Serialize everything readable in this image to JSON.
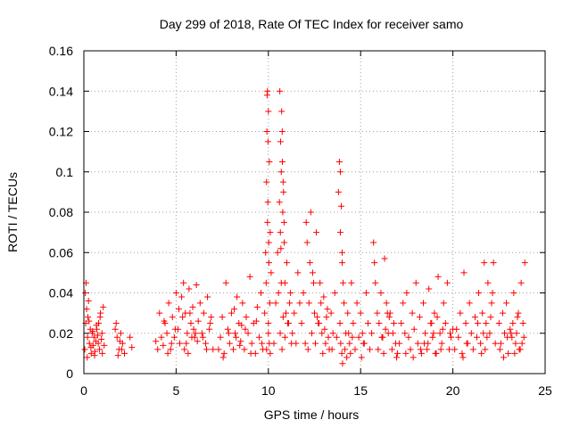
{
  "chart_data": {
    "type": "scatter",
    "title": "Day 299 of 2018, Rate Of TEC Index for receiver samo",
    "xlabel": "GPS time / hours",
    "ylabel": "ROTI / TECUs",
    "xlim": [
      0,
      25
    ],
    "ylim": [
      0,
      0.16
    ],
    "xticks": [
      0,
      5,
      10,
      15,
      20,
      25
    ],
    "yticks": [
      0,
      0.02,
      0.04,
      0.06,
      0.08,
      0.1,
      0.12,
      0.14,
      0.16
    ],
    "xtick_labels": [
      "0",
      "5",
      "10",
      "15",
      "20",
      "25"
    ],
    "ytick_labels": [
      "0",
      "0.02",
      "0.04",
      "0.06",
      "0.08",
      "0.1",
      "0.12",
      "0.14",
      "0.16"
    ],
    "grid": true,
    "marker": "+",
    "color": "#ff0000",
    "series": [
      {
        "name": "ROTI",
        "x": [
          0.05,
          0.1,
          0.12,
          0.15,
          0.2,
          0.22,
          0.25,
          0.3,
          0.35,
          0.4,
          0.45,
          0.5,
          0.55,
          0.6,
          0.65,
          0.7,
          0.75,
          0.8,
          0.85,
          0.9,
          0.95,
          1.0,
          1.05,
          1.1,
          0.08,
          0.18,
          0.28,
          0.38,
          0.48,
          0.58,
          0.68,
          0.78,
          0.88,
          0.98,
          1.7,
          1.8,
          1.9,
          2.0,
          2.1,
          2.2,
          2.5,
          2.6,
          1.75,
          1.85,
          1.95,
          2.05,
          3.9,
          4.0,
          4.1,
          4.2,
          4.3,
          4.4,
          4.5,
          4.6,
          4.7,
          4.8,
          4.9,
          5.0,
          5.1,
          5.2,
          5.3,
          5.4,
          5.5,
          5.6,
          5.7,
          5.8,
          5.9,
          6.0,
          6.1,
          6.2,
          6.3,
          6.4,
          6.5,
          6.6,
          6.7,
          6.8,
          6.9,
          7.0,
          5.45,
          5.55,
          5.65,
          5.75,
          5.85,
          5.95,
          6.05,
          6.15,
          4.35,
          4.55,
          4.75,
          4.95,
          5.15,
          5.35,
          6.45,
          6.65,
          6.85,
          7.3,
          7.4,
          7.5,
          7.6,
          7.7,
          7.8,
          7.9,
          8.0,
          8.1,
          8.2,
          8.3,
          8.4,
          8.5,
          8.6,
          8.7,
          8.8,
          8.9,
          9.0,
          9.1,
          9.2,
          9.3,
          9.4,
          9.5,
          9.6,
          9.7,
          7.55,
          7.85,
          8.15,
          8.45,
          8.75,
          9.05,
          9.35,
          9.65,
          8.25,
          8.55,
          9.8,
          9.85,
          9.9,
          9.95,
          10.0,
          10.05,
          10.1,
          10.15,
          9.92,
          9.97,
          10.02,
          9.88,
          9.98,
          10.08,
          9.93,
          10.03,
          9.95,
          10.0,
          10.05,
          10.1,
          9.9,
          10.0,
          10.3,
          10.4,
          10.5,
          10.55,
          10.6,
          10.65,
          10.7,
          10.75,
          10.8,
          10.85,
          10.9,
          10.95,
          11.0,
          11.1,
          11.2,
          11.3,
          11.4,
          11.5,
          11.6,
          11.7,
          10.62,
          10.72,
          10.82,
          10.68,
          10.78,
          10.66,
          10.76,
          10.86,
          10.64,
          10.74,
          10.7,
          10.8,
          10.9,
          11.05,
          11.15,
          11.25,
          11.8,
          11.9,
          12.0,
          12.1,
          12.2,
          12.3,
          12.4,
          12.5,
          12.6,
          12.7,
          12.8,
          12.9,
          13.0,
          13.1,
          13.2,
          13.3,
          13.4,
          13.5,
          13.6,
          13.7,
          12.05,
          12.25,
          12.45,
          12.65,
          12.85,
          13.05,
          13.25,
          13.45,
          12.15,
          12.35,
          12.55,
          12.75,
          12.95,
          13.15,
          13.8,
          13.85,
          13.9,
          13.95,
          14.0,
          14.05,
          14.1,
          14.2,
          14.3,
          14.4,
          14.5,
          14.6,
          14.7,
          14.8,
          14.9,
          15.0,
          15.1,
          15.2,
          15.3,
          15.4,
          15.5,
          13.9,
          14.0,
          13.92,
          13.98,
          14.02,
          13.88,
          14.15,
          14.25,
          14.35,
          14.45,
          14.55,
          15.6,
          15.7,
          15.8,
          15.9,
          16.0,
          16.1,
          16.2,
          16.3,
          16.4,
          16.5,
          16.6,
          16.7,
          16.8,
          16.9,
          17.0,
          15.05,
          15.15,
          16.25,
          16.35,
          16.45,
          15.75,
          15.95,
          16.15,
          16.55,
          16.75,
          16.95,
          17.1,
          17.2,
          17.3,
          17.4,
          17.5,
          17.6,
          17.7,
          17.8,
          17.9,
          18.0,
          18.1,
          18.2,
          18.3,
          18.4,
          18.5,
          18.6,
          18.7,
          18.8,
          18.9,
          19.0,
          19.1,
          19.2,
          19.3,
          19.4,
          19.5,
          19.6,
          19.7,
          19.8,
          19.9,
          20.0,
          17.45,
          17.85,
          18.25,
          18.65,
          19.05,
          19.45,
          19.85,
          18.95,
          19.15,
          19.35,
          18.45,
          18.85,
          20.1,
          20.2,
          20.3,
          20.4,
          20.5,
          20.6,
          20.7,
          20.8,
          20.9,
          21.0,
          21.1,
          21.2,
          21.3,
          21.4,
          21.5,
          21.6,
          21.7,
          21.8,
          21.9,
          22.0,
          22.1,
          22.2,
          22.3,
          21.65,
          21.75,
          21.85,
          22.05,
          22.15,
          21.35,
          21.55,
          20.55,
          20.75,
          22.5,
          22.6,
          22.7,
          22.8,
          22.9,
          23.0,
          23.1,
          23.2,
          23.3,
          23.4,
          23.5,
          23.6,
          23.7,
          23.8,
          23.9,
          22.55,
          22.75,
          22.95,
          23.15,
          23.35,
          23.55,
          23.75,
          23.45,
          23.65,
          23.85,
          23.25
        ],
        "y": [
          0.012,
          0.025,
          0.045,
          0.032,
          0.018,
          0.028,
          0.036,
          0.015,
          0.022,
          0.01,
          0.02,
          0.014,
          0.018,
          0.011,
          0.016,
          0.022,
          0.019,
          0.025,
          0.012,
          0.03,
          0.017,
          0.01,
          0.033,
          0.014,
          0.04,
          0.008,
          0.026,
          0.013,
          0.021,
          0.009,
          0.024,
          0.015,
          0.028,
          0.02,
          0.022,
          0.018,
          0.012,
          0.02,
          0.015,
          0.01,
          0.018,
          0.013,
          0.025,
          0.009,
          0.016,
          0.012,
          0.016,
          0.012,
          0.03,
          0.018,
          0.014,
          0.025,
          0.02,
          0.035,
          0.012,
          0.028,
          0.018,
          0.04,
          0.022,
          0.015,
          0.038,
          0.045,
          0.03,
          0.02,
          0.042,
          0.025,
          0.033,
          0.018,
          0.044,
          0.026,
          0.035,
          0.02,
          0.03,
          0.015,
          0.038,
          0.022,
          0.028,
          0.012,
          0.012,
          0.015,
          0.01,
          0.03,
          0.018,
          0.022,
          0.02,
          0.016,
          0.026,
          0.01,
          0.015,
          0.022,
          0.032,
          0.028,
          0.018,
          0.012,
          0.025,
          0.012,
          0.018,
          0.028,
          0.01,
          0.045,
          0.022,
          0.015,
          0.03,
          0.012,
          0.02,
          0.038,
          0.025,
          0.016,
          0.035,
          0.012,
          0.028,
          0.02,
          0.048,
          0.015,
          0.025,
          0.01,
          0.033,
          0.018,
          0.04,
          0.012,
          0.008,
          0.02,
          0.032,
          0.014,
          0.022,
          0.01,
          0.026,
          0.015,
          0.018,
          0.024,
          0.03,
          0.06,
          0.095,
          0.14,
          0.13,
          0.105,
          0.07,
          0.05,
          0.12,
          0.085,
          0.065,
          0.045,
          0.115,
          0.035,
          0.138,
          0.055,
          0.075,
          0.025,
          0.015,
          0.01,
          0.012,
          0.02,
          0.015,
          0.035,
          0.06,
          0.04,
          0.085,
          0.07,
          0.1,
          0.12,
          0.095,
          0.075,
          0.045,
          0.03,
          0.055,
          0.025,
          0.04,
          0.02,
          0.03,
          0.015,
          0.05,
          0.035,
          0.14,
          0.13,
          0.09,
          0.062,
          0.08,
          0.115,
          0.105,
          0.065,
          0.02,
          0.012,
          0.045,
          0.028,
          0.018,
          0.025,
          0.035,
          0.015,
          0.025,
          0.04,
          0.015,
          0.065,
          0.035,
          0.08,
          0.05,
          0.03,
          0.07,
          0.025,
          0.045,
          0.02,
          0.038,
          0.015,
          0.032,
          0.012,
          0.03,
          0.02,
          0.04,
          0.018,
          0.075,
          0.055,
          0.045,
          0.028,
          0.035,
          0.022,
          0.018,
          0.012,
          0.012,
          0.02,
          0.015,
          0.025,
          0.01,
          0.028,
          0.09,
          0.105,
          0.1,
          0.083,
          0.06,
          0.045,
          0.035,
          0.02,
          0.03,
          0.015,
          0.045,
          0.025,
          0.012,
          0.035,
          0.018,
          0.03,
          0.02,
          0.015,
          0.04,
          0.025,
          0.012,
          0.07,
          0.055,
          0.015,
          0.01,
          0.005,
          0.025,
          0.012,
          0.008,
          0.02,
          0.01,
          0.018,
          0.02,
          0.065,
          0.045,
          0.03,
          0.025,
          0.04,
          0.018,
          0.057,
          0.035,
          0.02,
          0.03,
          0.012,
          0.025,
          0.015,
          0.01,
          0.008,
          0.015,
          0.01,
          0.022,
          0.03,
          0.055,
          0.012,
          0.018,
          0.028,
          0.02,
          0.008,
          0.015,
          0.025,
          0.035,
          0.02,
          0.04,
          0.018,
          0.012,
          0.03,
          0.022,
          0.045,
          0.015,
          0.028,
          0.01,
          0.035,
          0.02,
          0.012,
          0.042,
          0.025,
          0.018,
          0.03,
          0.01,
          0.048,
          0.02,
          0.015,
          0.035,
          0.025,
          0.045,
          0.012,
          0.018,
          0.022,
          0.01,
          0.008,
          0.012,
          0.015,
          0.01,
          0.022,
          0.02,
          0.02,
          0.028,
          0.012,
          0.015,
          0.025,
          0.012,
          0.022,
          0.018,
          0.03,
          0.01,
          0.05,
          0.025,
          0.015,
          0.035,
          0.02,
          0.012,
          0.028,
          0.018,
          0.04,
          0.015,
          0.03,
          0.055,
          0.025,
          0.045,
          0.02,
          0.035,
          0.055,
          0.015,
          0.02,
          0.012,
          0.018,
          0.028,
          0.04,
          0.025,
          0.01,
          0.008,
          0.015,
          0.025,
          0.015,
          0.03,
          0.02,
          0.035,
          0.01,
          0.022,
          0.018,
          0.04,
          0.015,
          0.028,
          0.012,
          0.045,
          0.025,
          0.055,
          0.012,
          0.008,
          0.018,
          0.02,
          0.01,
          0.03,
          0.015,
          0.02,
          0.012,
          0.018,
          0.025
        ]
      }
    ]
  }
}
